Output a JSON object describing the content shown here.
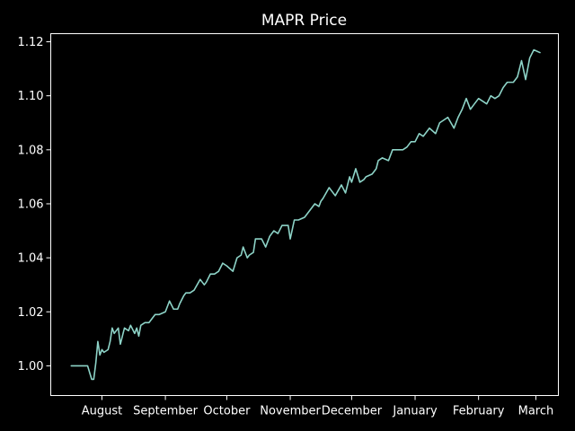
{
  "chart_data": {
    "type": "line",
    "title": "MAPR Price",
    "xlabel": "",
    "ylabel": "",
    "x_tick_labels": [
      "August",
      "September",
      "October",
      "November",
      "December",
      "January",
      "February",
      "March"
    ],
    "y_tick_labels": [
      "1.00",
      "1.02",
      "1.04",
      "1.06",
      "1.08",
      "1.10",
      "1.12"
    ],
    "y_ticks": [
      1.0,
      1.02,
      1.04,
      1.06,
      1.08,
      1.1,
      1.12
    ],
    "ylim": [
      0.989,
      1.123
    ],
    "xlim": [
      "2020-07-07",
      "2021-03-12"
    ],
    "x_tick_dates": [
      "2020-08-01",
      "2020-09-01",
      "2020-10-01",
      "2020-11-01",
      "2020-12-01",
      "2021-01-01",
      "2021-02-01",
      "2021-03-01"
    ],
    "grid": false,
    "colors": {
      "background": "#000000",
      "axes": "#ffffff",
      "line": "#8dd3c7",
      "text": "#ffffff"
    },
    "series": [
      {
        "x": [
          "2020-07-17",
          "2020-07-21",
          "2020-07-25",
          "2020-07-27",
          "2020-07-28",
          "2020-07-29",
          "2020-07-30",
          "2020-07-31",
          "2020-08-01",
          "2020-08-02",
          "2020-08-04",
          "2020-08-05",
          "2020-08-06",
          "2020-08-07",
          "2020-08-09",
          "2020-08-10",
          "2020-08-11",
          "2020-08-12",
          "2020-08-14",
          "2020-08-15",
          "2020-08-17",
          "2020-08-18",
          "2020-08-19",
          "2020-08-20",
          "2020-08-22",
          "2020-08-24",
          "2020-08-25",
          "2020-08-27",
          "2020-08-29",
          "2020-09-01",
          "2020-09-03",
          "2020-09-05",
          "2020-09-07",
          "2020-09-08",
          "2020-09-10",
          "2020-09-11",
          "2020-09-13",
          "2020-09-15",
          "2020-09-18",
          "2020-09-20",
          "2020-09-21",
          "2020-09-23",
          "2020-09-25",
          "2020-09-27",
          "2020-09-29",
          "2020-10-01",
          "2020-10-04",
          "2020-10-06",
          "2020-10-08",
          "2020-10-09",
          "2020-10-11",
          "2020-10-12",
          "2020-10-14",
          "2020-10-15",
          "2020-10-18",
          "2020-10-20",
          "2020-10-22",
          "2020-10-24",
          "2020-10-26",
          "2020-10-28",
          "2020-10-31",
          "2020-11-01",
          "2020-11-03",
          "2020-11-05",
          "2020-11-08",
          "2020-11-10",
          "2020-11-13",
          "2020-11-15",
          "2020-11-16",
          "2020-11-17",
          "2020-11-20",
          "2020-11-23",
          "2020-11-26",
          "2020-11-28",
          "2020-11-30",
          "2020-12-01",
          "2020-12-03",
          "2020-12-05",
          "2020-12-07",
          "2020-12-08",
          "2020-12-11",
          "2020-12-13",
          "2020-12-14",
          "2020-12-16",
          "2020-12-19",
          "2020-12-21",
          "2020-12-24",
          "2020-12-26",
          "2020-12-28",
          "2020-12-30",
          "2021-01-01",
          "2021-01-03",
          "2021-01-05",
          "2021-01-08",
          "2021-01-11",
          "2021-01-13",
          "2021-01-15",
          "2021-01-17",
          "2021-01-20",
          "2021-01-22",
          "2021-01-24",
          "2021-01-26",
          "2021-01-28",
          "2021-01-30",
          "2021-02-01",
          "2021-02-03",
          "2021-02-05",
          "2021-02-07",
          "2021-02-09",
          "2021-02-11",
          "2021-02-13",
          "2021-02-15",
          "2021-02-18",
          "2021-02-20",
          "2021-02-22",
          "2021-02-24",
          "2021-02-26",
          "2021-02-28",
          "2021-03-03"
        ],
        "values": [
          1.0,
          1.0,
          1.0,
          0.995,
          0.995,
          1.001,
          1.009,
          1.004,
          1.006,
          1.005,
          1.006,
          1.009,
          1.014,
          1.012,
          1.014,
          1.008,
          1.011,
          1.014,
          1.013,
          1.015,
          1.012,
          1.014,
          1.011,
          1.015,
          1.016,
          1.016,
          1.017,
          1.019,
          1.019,
          1.02,
          1.024,
          1.021,
          1.021,
          1.023,
          1.026,
          1.027,
          1.027,
          1.028,
          1.032,
          1.03,
          1.031,
          1.034,
          1.034,
          1.035,
          1.038,
          1.037,
          1.035,
          1.04,
          1.041,
          1.044,
          1.04,
          1.041,
          1.042,
          1.047,
          1.047,
          1.044,
          1.048,
          1.05,
          1.049,
          1.052,
          1.052,
          1.047,
          1.054,
          1.054,
          1.055,
          1.057,
          1.06,
          1.059,
          1.061,
          1.062,
          1.066,
          1.063,
          1.067,
          1.064,
          1.07,
          1.068,
          1.073,
          1.068,
          1.069,
          1.07,
          1.071,
          1.073,
          1.076,
          1.077,
          1.076,
          1.08,
          1.08,
          1.08,
          1.081,
          1.083,
          1.083,
          1.086,
          1.085,
          1.088,
          1.086,
          1.09,
          1.091,
          1.092,
          1.088,
          1.092,
          1.095,
          1.099,
          1.095,
          1.097,
          1.099,
          1.098,
          1.097,
          1.1,
          1.099,
          1.1,
          1.103,
          1.105,
          1.105,
          1.107,
          1.113,
          1.106,
          1.114,
          1.117,
          1.116
        ]
      }
    ]
  }
}
